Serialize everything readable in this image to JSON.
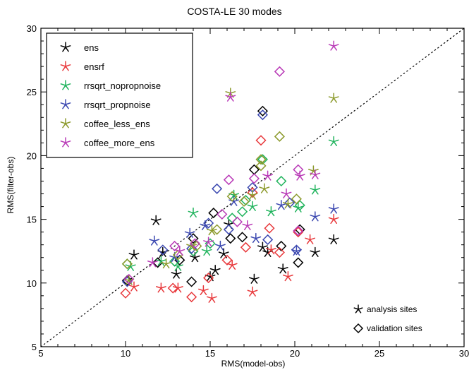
{
  "chart_data": {
    "type": "scatter",
    "title": "COSTA-LE  30 modes",
    "xlabel": "RMS(model-obs)",
    "ylabel": "RMS(filter-obs)",
    "xlim": [
      5,
      30
    ],
    "ylim": [
      5,
      30
    ],
    "xticks": [
      "5",
      "10",
      "15",
      "20",
      "25",
      "30"
    ],
    "yticks": [
      "5",
      "10",
      "15",
      "20",
      "25",
      "30"
    ],
    "grid": false,
    "legend_position": "top-left",
    "reference_line": "1:1 dotted diagonal",
    "marker_key": [
      {
        "marker": "star",
        "label": "analysis sites"
      },
      {
        "marker": "diamond",
        "label": "validation sites"
      }
    ],
    "series": [
      {
        "name": "ens",
        "color": "#000000",
        "analysis": [
          [
            10.5,
            12.2
          ],
          [
            11.8,
            14.9
          ],
          [
            12.2,
            12.4
          ],
          [
            13.0,
            10.7
          ],
          [
            14.1,
            12.0
          ],
          [
            15.0,
            10.5
          ],
          [
            15.3,
            11.0
          ],
          [
            15.8,
            12.3
          ],
          [
            16.1,
            14.6
          ],
          [
            17.6,
            10.3
          ],
          [
            18.1,
            12.8
          ],
          [
            18.4,
            12.4
          ],
          [
            19.3,
            11.1
          ],
          [
            22.3,
            13.4
          ],
          [
            21.2,
            12.4
          ]
        ],
        "validation": [
          [
            10.1,
            10.2
          ],
          [
            11.9,
            11.6
          ],
          [
            13.2,
            11.8
          ],
          [
            13.9,
            10.1
          ],
          [
            14.0,
            13.5
          ],
          [
            15.2,
            15.5
          ],
          [
            16.2,
            13.5
          ],
          [
            16.9,
            13.6
          ],
          [
            17.6,
            18.9
          ],
          [
            18.1,
            23.5
          ],
          [
            19.2,
            12.9
          ],
          [
            20.2,
            11.6
          ],
          [
            20.3,
            14.2
          ]
        ]
      },
      {
        "name": "ensrf",
        "color": "#e8383b",
        "analysis": [
          [
            10.5,
            9.7
          ],
          [
            12.1,
            9.6
          ],
          [
            13.1,
            9.6
          ],
          [
            14.6,
            9.4
          ],
          [
            15.1,
            8.8
          ],
          [
            16.3,
            11.4
          ],
          [
            17.5,
            9.3
          ],
          [
            18.6,
            12.6
          ],
          [
            19.6,
            10.5
          ],
          [
            22.3,
            15.0
          ],
          [
            20.9,
            13.4
          ]
        ],
        "validation": [
          [
            10.0,
            9.2
          ],
          [
            12.8,
            9.6
          ],
          [
            13.9,
            8.9
          ],
          [
            14.9,
            10.4
          ],
          [
            16.0,
            11.8
          ],
          [
            17.1,
            12.8
          ],
          [
            18.0,
            21.2
          ],
          [
            17.5,
            17.1
          ],
          [
            19.1,
            12.4
          ],
          [
            20.2,
            14.0
          ],
          [
            18.5,
            14.3
          ]
        ]
      },
      {
        "name": "rrsqrt_nopropnoise",
        "color": "#1fb35c",
        "analysis": [
          [
            10.3,
            11.3
          ],
          [
            12.1,
            11.7
          ],
          [
            13.1,
            11.3
          ],
          [
            14.0,
            15.5
          ],
          [
            14.8,
            12.5
          ],
          [
            16.4,
            16.9
          ],
          [
            17.5,
            16.0
          ],
          [
            18.6,
            15.6
          ],
          [
            20.2,
            15.9
          ],
          [
            22.3,
            21.1
          ],
          [
            21.2,
            17.3
          ]
        ],
        "validation": [
          [
            10.1,
            11.5
          ],
          [
            12.9,
            11.7
          ],
          [
            14.0,
            12.5
          ],
          [
            15.0,
            13.1
          ],
          [
            16.3,
            15.1
          ],
          [
            17.1,
            16.5
          ],
          [
            18.1,
            19.7
          ],
          [
            19.2,
            18.0
          ],
          [
            20.3,
            16.1
          ],
          [
            16.9,
            15.6
          ]
        ]
      },
      {
        "name": "rrsqrt_propnoise",
        "color": "#3b48b0",
        "analysis": [
          [
            11.7,
            13.3
          ],
          [
            12.9,
            12.0
          ],
          [
            13.8,
            13.9
          ],
          [
            14.7,
            14.5
          ],
          [
            15.6,
            12.9
          ],
          [
            16.4,
            16.4
          ],
          [
            17.7,
            13.5
          ],
          [
            19.2,
            16.1
          ],
          [
            21.2,
            15.2
          ],
          [
            22.3,
            15.8
          ],
          [
            20.1,
            12.5
          ]
        ],
        "validation": [
          [
            10.1,
            10.1
          ],
          [
            12.2,
            12.6
          ],
          [
            13.9,
            12.7
          ],
          [
            14.9,
            14.7
          ],
          [
            15.4,
            17.4
          ],
          [
            16.1,
            14.2
          ],
          [
            18.1,
            23.2
          ],
          [
            17.5,
            17.5
          ],
          [
            18.4,
            13.4
          ],
          [
            19.7,
            16.3
          ],
          [
            20.1,
            12.6
          ]
        ]
      },
      {
        "name": "coffee_less_ens",
        "color": "#8c9a2c",
        "analysis": [
          [
            10.2,
            10.2
          ],
          [
            12.4,
            11.5
          ],
          [
            13.9,
            12.9
          ],
          [
            15.1,
            14.1
          ],
          [
            16.2,
            24.9
          ],
          [
            17.5,
            16.9
          ],
          [
            18.2,
            17.4
          ],
          [
            19.6,
            16.2
          ],
          [
            21.1,
            18.8
          ],
          [
            22.3,
            24.5
          ]
        ],
        "validation": [
          [
            10.1,
            11.5
          ],
          [
            13.1,
            12.2
          ],
          [
            14.2,
            12.9
          ],
          [
            15.4,
            14.2
          ],
          [
            16.3,
            16.8
          ],
          [
            17.0,
            16.4
          ],
          [
            18.0,
            19.7
          ],
          [
            19.1,
            21.5
          ],
          [
            20.1,
            16.6
          ],
          [
            18.0,
            19.2
          ]
        ]
      },
      {
        "name": "coffee_more_ens",
        "color": "#b93ab7",
        "analysis": [
          [
            11.6,
            11.6
          ],
          [
            13.2,
            12.5
          ],
          [
            14.9,
            13.2
          ],
          [
            16.2,
            24.6
          ],
          [
            17.2,
            14.5
          ],
          [
            18.4,
            18.4
          ],
          [
            19.5,
            17.0
          ],
          [
            20.3,
            18.4
          ],
          [
            21.2,
            18.5
          ],
          [
            22.3,
            28.6
          ]
        ],
        "validation": [
          [
            10.2,
            10.3
          ],
          [
            12.9,
            12.9
          ],
          [
            14.1,
            13.1
          ],
          [
            15.7,
            15.4
          ],
          [
            16.1,
            18.1
          ],
          [
            16.6,
            14.8
          ],
          [
            17.6,
            18.2
          ],
          [
            19.1,
            26.6
          ],
          [
            20.2,
            18.9
          ],
          [
            20.2,
            14.1
          ]
        ]
      }
    ]
  }
}
